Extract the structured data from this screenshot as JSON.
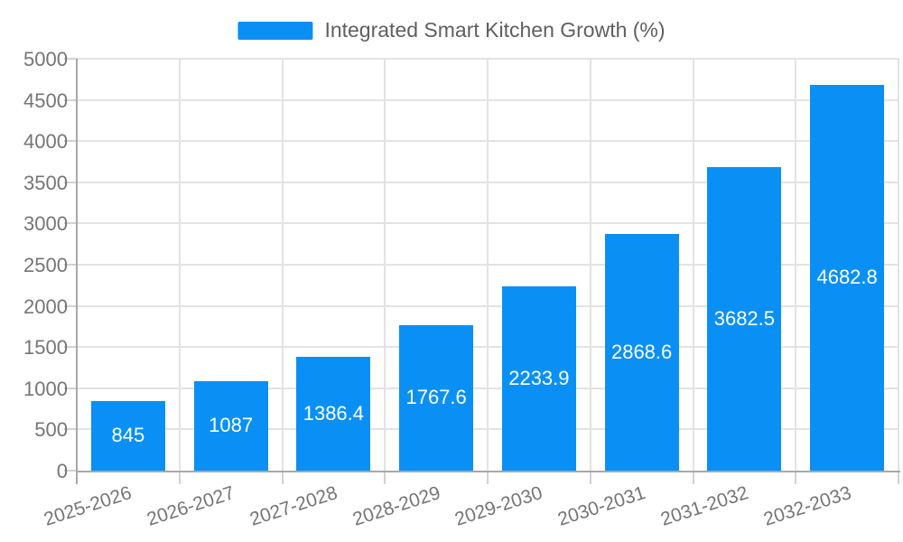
{
  "legend": {
    "label": "Integrated Smart Kitchen Growth (%)"
  },
  "chart_data": {
    "type": "bar",
    "title": "Integrated Smart Kitchen Growth (%)",
    "categories": [
      "2025-2026",
      "2026-2027",
      "2027-2028",
      "2028-2029",
      "2029-2030",
      "2030-2031",
      "2031-2032",
      "2032-2033"
    ],
    "values": [
      845,
      1087,
      1386.4,
      1767.6,
      2233.9,
      2868.6,
      3682.5,
      4682.8
    ],
    "value_labels": [
      "845",
      "1087",
      "1386.4",
      "1767.6",
      "2233.9",
      "2868.6",
      "3682.5",
      "4682.8"
    ],
    "xlabel": "",
    "ylabel": "",
    "ylim": [
      0,
      5000
    ],
    "yticks": [
      0,
      500,
      1000,
      1500,
      2000,
      2500,
      3000,
      3500,
      4000,
      4500,
      5000
    ],
    "grid": true,
    "legend_position": "top-center",
    "x_label_rotation_deg": -18,
    "style": {
      "bar_color": "#0a90f5",
      "grid_color": "#e3e3e3",
      "axis_color": "#a8a8a8",
      "tick_color": "#d2d2d2",
      "axis_label_color": "#757575",
      "legend_text_color": "#5f5f5f",
      "value_label_color": "#ffffff",
      "background": "#ffffff"
    }
  }
}
